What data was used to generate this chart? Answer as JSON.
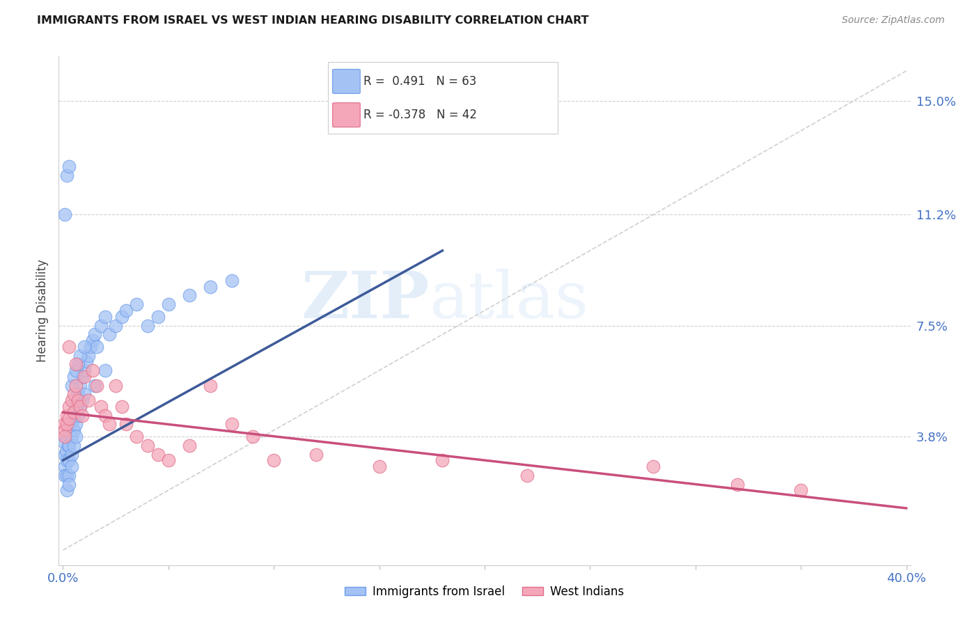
{
  "title": "IMMIGRANTS FROM ISRAEL VS WEST INDIAN HEARING DISABILITY CORRELATION CHART",
  "source": "Source: ZipAtlas.com",
  "ylabel": "Hearing Disability",
  "ytick_labels": [
    "15.0%",
    "11.2%",
    "7.5%",
    "3.8%"
  ],
  "ytick_values": [
    0.15,
    0.112,
    0.075,
    0.038
  ],
  "xtick_values": [
    0.0,
    0.05,
    0.1,
    0.15,
    0.2,
    0.25,
    0.3,
    0.35,
    0.4
  ],
  "xlim": [
    -0.002,
    0.402
  ],
  "ylim": [
    -0.005,
    0.165
  ],
  "color_blue": "#a4c2f4",
  "color_pink": "#f4a7b9",
  "color_blue_edge": "#6d9eeb",
  "color_pink_edge": "#e06c8a",
  "color_blue_line": "#3d5a99",
  "color_pink_line": "#c94f7c",
  "color_dashed": "#bbbbbb",
  "watermark_zip": "ZIP",
  "watermark_atlas": "atlas",
  "israel_x": [
    0.0005,
    0.001,
    0.001,
    0.001,
    0.0015,
    0.002,
    0.002,
    0.002,
    0.002,
    0.0025,
    0.003,
    0.003,
    0.003,
    0.003,
    0.003,
    0.004,
    0.004,
    0.004,
    0.004,
    0.005,
    0.005,
    0.005,
    0.006,
    0.006,
    0.006,
    0.007,
    0.007,
    0.008,
    0.008,
    0.009,
    0.009,
    0.01,
    0.01,
    0.011,
    0.012,
    0.013,
    0.014,
    0.015,
    0.016,
    0.018,
    0.02,
    0.022,
    0.025,
    0.028,
    0.03,
    0.035,
    0.04,
    0.045,
    0.05,
    0.06,
    0.07,
    0.08,
    0.001,
    0.002,
    0.003,
    0.004,
    0.005,
    0.006,
    0.007,
    0.008,
    0.01,
    0.015,
    0.02
  ],
  "israel_y": [
    0.036,
    0.032,
    0.028,
    0.025,
    0.033,
    0.038,
    0.03,
    0.025,
    0.02,
    0.035,
    0.04,
    0.035,
    0.03,
    0.025,
    0.022,
    0.042,
    0.038,
    0.032,
    0.028,
    0.045,
    0.04,
    0.035,
    0.048,
    0.042,
    0.038,
    0.052,
    0.045,
    0.055,
    0.048,
    0.058,
    0.05,
    0.06,
    0.052,
    0.063,
    0.065,
    0.068,
    0.07,
    0.072,
    0.068,
    0.075,
    0.078,
    0.072,
    0.075,
    0.078,
    0.08,
    0.082,
    0.075,
    0.078,
    0.082,
    0.085,
    0.088,
    0.09,
    0.112,
    0.125,
    0.128,
    0.055,
    0.058,
    0.06,
    0.062,
    0.065,
    0.068,
    0.055,
    0.06
  ],
  "westindian_x": [
    0.0005,
    0.001,
    0.001,
    0.002,
    0.002,
    0.003,
    0.003,
    0.004,
    0.005,
    0.005,
    0.006,
    0.007,
    0.008,
    0.009,
    0.01,
    0.012,
    0.014,
    0.016,
    0.018,
    0.02,
    0.022,
    0.025,
    0.028,
    0.03,
    0.035,
    0.04,
    0.045,
    0.05,
    0.06,
    0.07,
    0.08,
    0.09,
    0.1,
    0.12,
    0.15,
    0.18,
    0.22,
    0.28,
    0.32,
    0.35,
    0.003,
    0.006
  ],
  "westindian_y": [
    0.042,
    0.04,
    0.038,
    0.045,
    0.042,
    0.048,
    0.044,
    0.05,
    0.052,
    0.046,
    0.055,
    0.05,
    0.048,
    0.045,
    0.058,
    0.05,
    0.06,
    0.055,
    0.048,
    0.045,
    0.042,
    0.055,
    0.048,
    0.042,
    0.038,
    0.035,
    0.032,
    0.03,
    0.035,
    0.055,
    0.042,
    0.038,
    0.03,
    0.032,
    0.028,
    0.03,
    0.025,
    0.028,
    0.022,
    0.02,
    0.068,
    0.062
  ],
  "blue_line_x": [
    0.0,
    0.18
  ],
  "blue_line_y": [
    0.03,
    0.1
  ],
  "pink_line_x": [
    0.0,
    0.4
  ],
  "pink_line_y": [
    0.046,
    0.014
  ]
}
